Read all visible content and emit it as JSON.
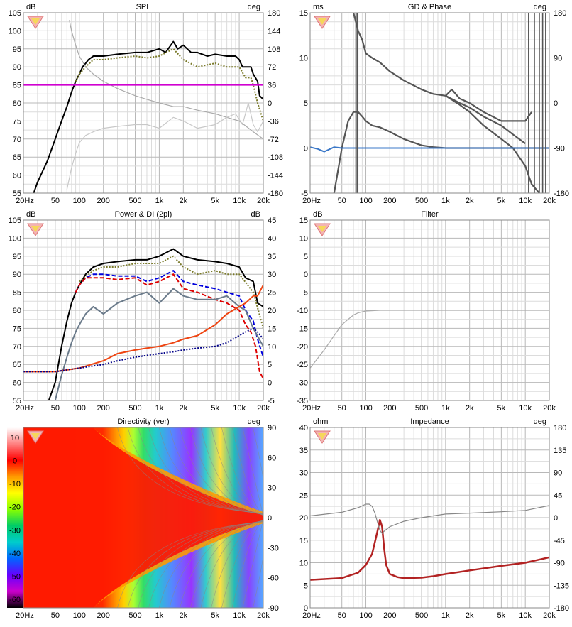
{
  "panels": {
    "spl": {
      "title": "SPL",
      "left_unit": "dB",
      "right_unit": "deg",
      "x_ticks": [
        "20Hz",
        "50",
        "100",
        "200",
        "500",
        "1k",
        "2k",
        "5k",
        "10k",
        "20k"
      ],
      "y_left_ticks": [
        "105",
        "100",
        "95",
        "90",
        "85",
        "80",
        "75",
        "70",
        "65",
        "60",
        "55"
      ],
      "y_right_ticks": [
        "180",
        "144",
        "108",
        "72",
        "36",
        "0",
        "-36",
        "-72",
        "-108",
        "-144",
        "-180"
      ]
    },
    "gd": {
      "title": "GD & Phase",
      "left_unit": "ms",
      "right_unit": "deg",
      "x_ticks": [
        "20Hz",
        "50",
        "100",
        "200",
        "500",
        "1k",
        "2k",
        "5k",
        "10k",
        "20k"
      ],
      "y_left_ticks": [
        "15",
        "10",
        "5",
        "0",
        "-5"
      ],
      "y_right_ticks": [
        "180",
        "90",
        "0",
        "-90",
        "-180"
      ]
    },
    "power": {
      "title": "Power & DI (2pi)",
      "left_unit": "dB",
      "right_unit": "dB",
      "x_ticks": [
        "20Hz",
        "50",
        "100",
        "200",
        "500",
        "1k",
        "2k",
        "5k",
        "10k",
        "20k"
      ],
      "y_left_ticks": [
        "105",
        "100",
        "95",
        "90",
        "85",
        "80",
        "75",
        "70",
        "65",
        "60",
        "55"
      ],
      "y_right_ticks": [
        "45",
        "40",
        "35",
        "30",
        "25",
        "20",
        "15",
        "10",
        "5",
        "0",
        "-5"
      ]
    },
    "filter": {
      "title": "Filter",
      "left_unit": "dB",
      "x_ticks": [
        "20Hz",
        "50",
        "100",
        "200",
        "500",
        "1k",
        "2k",
        "5k",
        "10k",
        "20k"
      ],
      "y_left_ticks": [
        "15",
        "10",
        "5",
        "0",
        "-5",
        "-10",
        "-15",
        "-20",
        "-25",
        "-30",
        "-35"
      ]
    },
    "directivity": {
      "title": "Directivity (ver)",
      "right_unit": "deg",
      "x_ticks": [
        "20Hz",
        "50",
        "100",
        "200",
        "500",
        "1k",
        "2k",
        "5k",
        "10k",
        "20k"
      ],
      "y_right_ticks": [
        "90",
        "60",
        "30",
        "0",
        "-30",
        "-60",
        "-90"
      ],
      "colorbar_ticks": [
        "10",
        "0",
        "-10",
        "-20",
        "-30",
        "-40",
        "-50",
        "-60"
      ]
    },
    "impedance": {
      "title": "Impedance",
      "left_unit": "ohm",
      "right_unit": "deg",
      "x_ticks": [
        "20Hz",
        "50",
        "100",
        "200",
        "500",
        "1k",
        "2k",
        "5k",
        "10k",
        "20k"
      ],
      "y_left_ticks": [
        "40",
        "35",
        "30",
        "25",
        "20",
        "15",
        "10",
        "5",
        "0"
      ],
      "y_right_ticks": [
        "180",
        "135",
        "90",
        "45",
        "0",
        "-45",
        "-90",
        "-135",
        "-180"
      ]
    }
  },
  "chart_data": [
    {
      "type": "line",
      "title": "SPL",
      "x_scale": "log",
      "xlim": [
        20,
        20000
      ],
      "ylim": [
        55,
        105
      ],
      "y2lim": [
        -180,
        180
      ],
      "grid": true,
      "series": [
        {
          "color": "#000000",
          "style": "solid",
          "x": [
            25,
            30,
            40,
            50,
            60,
            70,
            80,
            90,
            100,
            110,
            120,
            130,
            150,
            200,
            300,
            500,
            700,
            1000,
            1200,
            1500,
            1700,
            2000,
            2500,
            3000,
            4000,
            5000,
            7000,
            9000,
            10000,
            11000,
            12000,
            14000,
            15000,
            17000,
            18000,
            20000
          ],
          "y": [
            53,
            58,
            64,
            70,
            75,
            79,
            83,
            86,
            88,
            90,
            91,
            92,
            93,
            93,
            93.5,
            94,
            94,
            95,
            94,
            97,
            95,
            96,
            94,
            94,
            93,
            93.5,
            93,
            93,
            92,
            90,
            90,
            90,
            88,
            86,
            82,
            81
          ]
        },
        {
          "color": "#7a7a2a",
          "style": "dotted",
          "x": [
            90,
            100,
            120,
            150,
            200,
            300,
            500,
            700,
            1000,
            1500,
            2000,
            3000,
            5000,
            7000,
            10000,
            12000,
            14000,
            15000,
            17000,
            20000
          ],
          "y": [
            86,
            88,
            90,
            92,
            92,
            92.5,
            93,
            92.5,
            93,
            95,
            92,
            90,
            91,
            90,
            90,
            87,
            87,
            85,
            80,
            75
          ]
        },
        {
          "color": "#aaaaaa",
          "style": "solid",
          "x": [
            75,
            80,
            90,
            100,
            120,
            150,
            200,
            300,
            500,
            700,
            1000,
            1500,
            2000,
            3000,
            5000,
            7000,
            10000,
            15000,
            20000
          ],
          "y": [
            103,
            100,
            96,
            93,
            90,
            88,
            86,
            84,
            82,
            81,
            80,
            79,
            79,
            78,
            77,
            76,
            75,
            72,
            70
          ]
        },
        {
          "color": "#c8c8c8",
          "style": "solid",
          "x": [
            70,
            80,
            90,
            100,
            120,
            150,
            200,
            300,
            500,
            700,
            1000,
            1500,
            2000,
            3000,
            5000,
            7000,
            9000,
            11000,
            13000,
            15000,
            17000,
            20000
          ],
          "y": [
            56,
            62,
            66,
            69,
            71,
            72,
            73,
            73.5,
            74,
            74,
            73,
            76,
            75,
            73,
            74,
            76,
            77,
            74,
            80,
            74,
            72,
            75
          ]
        },
        {
          "color": "#d000d0",
          "style": "solid",
          "x": [
            20,
            20000
          ],
          "y": [
            85,
            85
          ]
        }
      ]
    },
    {
      "type": "line",
      "title": "GD & Phase",
      "x_scale": "log",
      "xlim": [
        20,
        20000
      ],
      "ylim": [
        -5,
        15
      ],
      "y2lim": [
        -180,
        180
      ],
      "grid": true,
      "series": [
        {
          "color": "#555555",
          "style": "solid",
          "x": [
            40,
            50,
            60,
            70,
            80,
            90,
            100,
            120,
            150,
            200,
            300,
            500,
            700,
            1000,
            1200,
            1500,
            2000,
            3000,
            5000,
            7000,
            10000,
            12000,
            15000,
            20000
          ],
          "y": [
            -5,
            0,
            3,
            4,
            4,
            3.5,
            3,
            2.5,
            2.3,
            1.8,
            1,
            0.3,
            0.1,
            0,
            0,
            0,
            0,
            0,
            0,
            0,
            0,
            0,
            0,
            0
          ]
        },
        {
          "color": "#555555",
          "style": "solid",
          "x": [
            70,
            80,
            90,
            100,
            120,
            150,
            200,
            300,
            500,
            700,
            1000,
            1200,
            1500,
            2000,
            3000,
            5000,
            7000,
            10000,
            12000
          ],
          "y": [
            15,
            13,
            12,
            10.5,
            10,
            9.5,
            8.5,
            7.5,
            6.5,
            6,
            5.8,
            6.5,
            5.5,
            5,
            4,
            3,
            3,
            3,
            4
          ]
        },
        {
          "color": "#555555",
          "style": "solid",
          "x": [
            1000,
            1500,
            2000,
            3000,
            5000,
            7000,
            10000
          ],
          "y": [
            5.8,
            5,
            4.5,
            3.5,
            2.5,
            1.5,
            0.5
          ]
        },
        {
          "color": "#555555",
          "style": "solid",
          "x": [
            1000,
            1500,
            2000,
            3000,
            5000,
            7000,
            10000,
            12000,
            15000
          ],
          "y": [
            5.8,
            4.8,
            4,
            2.5,
            1,
            0,
            -2,
            -4,
            -5
          ]
        },
        {
          "color": "#3b78c8",
          "style": "solid",
          "x": [
            20,
            25,
            30,
            40,
            50,
            100,
            1000,
            10000,
            20000
          ],
          "y": [
            0.1,
            -0.1,
            -0.4,
            0.1,
            0,
            0,
            0,
            0,
            0
          ]
        }
      ]
    },
    {
      "type": "line",
      "title": "Power & DI (2pi)",
      "x_scale": "log",
      "xlim": [
        20,
        20000
      ],
      "ylim": [
        55,
        105
      ],
      "y2lim": [
        -5,
        45
      ],
      "grid": true,
      "series": [
        {
          "color": "#000000",
          "style": "solid",
          "x": [
            40,
            50,
            60,
            70,
            80,
            90,
            100,
            120,
            150,
            200,
            300,
            500,
            700,
            1000,
            1500,
            2000,
            3000,
            5000,
            7000,
            10000,
            12000,
            15000,
            17000,
            20000
          ],
          "y": [
            54,
            60,
            70,
            77,
            82,
            85,
            87,
            90,
            92,
            93,
            93.5,
            94,
            94,
            95,
            97,
            95,
            94,
            93.5,
            93,
            92,
            89,
            88,
            82,
            81
          ]
        },
        {
          "color": "#7a7a2a",
          "style": "dotted",
          "x": [
            100,
            150,
            200,
            300,
            500,
            1000,
            1500,
            2000,
            3000,
            5000,
            7000,
            10000,
            15000,
            20000
          ],
          "y": [
            88,
            91,
            92,
            92,
            93,
            93,
            95,
            92,
            90,
            91,
            90,
            90,
            85,
            75
          ]
        },
        {
          "color": "#0000dd",
          "style": "dashed",
          "x": [
            90,
            100,
            120,
            150,
            200,
            300,
            500,
            700,
            1000,
            1500,
            2000,
            3000,
            5000,
            7000,
            10000,
            12000,
            15000,
            17000,
            20000
          ],
          "y": [
            85,
            87,
            89,
            90,
            90,
            89.5,
            89.5,
            88,
            89,
            91,
            88,
            87,
            86,
            85,
            84,
            80,
            77,
            72,
            67
          ]
        },
        {
          "color": "#dd0000",
          "style": "dashed",
          "x": [
            90,
            100,
            120,
            150,
            200,
            300,
            500,
            700,
            1000,
            1500,
            2000,
            3000,
            5000,
            7000,
            10000,
            12000,
            14000,
            16000,
            18000,
            20000
          ],
          "y": [
            85,
            87,
            89,
            89,
            89,
            88.5,
            89,
            87,
            88,
            90,
            86,
            85,
            83,
            82,
            80,
            76,
            74,
            70,
            63,
            61
          ]
        },
        {
          "color": "#6a7a8a",
          "style": "solid",
          "x": [
            50,
            60,
            70,
            80,
            90,
            100,
            120,
            150,
            200,
            300,
            500,
            700,
            1000,
            1500,
            2000,
            3000,
            5000,
            7000,
            10000,
            12000,
            15000,
            20000
          ],
          "y": [
            55,
            62,
            67,
            71,
            74,
            76,
            79,
            81,
            79,
            82,
            84,
            85,
            82,
            86,
            84,
            83,
            83,
            84,
            81,
            80,
            75,
            70
          ]
        },
        {
          "color": "#ee4411",
          "style": "solid",
          "x": [
            20,
            50,
            100,
            200,
            300,
            500,
            700,
            1000,
            1500,
            2000,
            3000,
            5000,
            7000,
            10000,
            12000,
            15000,
            17000,
            20000
          ],
          "y": [
            3,
            3,
            4,
            6,
            8,
            9,
            9.5,
            10,
            11,
            12,
            13,
            16,
            19,
            21,
            22,
            24,
            24,
            27
          ]
        },
        {
          "color": "#000088",
          "style": "dotted",
          "x": [
            20,
            50,
            100,
            200,
            300,
            500,
            700,
            1000,
            1500,
            2000,
            3000,
            5000,
            7000,
            10000,
            12000,
            15000,
            17000,
            20000
          ],
          "y": [
            3,
            3,
            4,
            5,
            6,
            7,
            7.5,
            8,
            8.5,
            9,
            9.5,
            10,
            11,
            13,
            14,
            15,
            14,
            12
          ]
        }
      ]
    },
    {
      "type": "line",
      "title": "Filter",
      "x_scale": "log",
      "xlim": [
        20,
        20000
      ],
      "ylim": [
        -35,
        15
      ],
      "grid": true,
      "series": [
        {
          "color": "#aaaaaa",
          "style": "solid",
          "x": [
            20,
            30,
            40,
            50,
            60,
            70,
            80,
            100,
            150,
            200,
            500,
            1000,
            20000
          ],
          "y": [
            -26,
            -21,
            -17,
            -14,
            -12.5,
            -11.3,
            -10.7,
            -10.2,
            -10,
            -10,
            -10,
            -10,
            -10
          ]
        }
      ]
    },
    {
      "type": "heatmap",
      "title": "Directivity (ver)",
      "x_scale": "log",
      "xlim": [
        20,
        20000
      ],
      "ylim": [
        -90,
        90
      ],
      "color_scale": [
        10,
        -60
      ],
      "colorbar": [
        "#ffffff",
        "#ff8080",
        "#ff0000",
        "#ff9900",
        "#ffff00",
        "#88ff00",
        "#00cc66",
        "#00cccc",
        "#0066ff",
        "#6600ff",
        "#cc00cc",
        "#000000"
      ]
    },
    {
      "type": "line",
      "title": "Impedance",
      "x_scale": "log",
      "xlim": [
        20,
        20000
      ],
      "ylim": [
        0,
        40
      ],
      "y2lim": [
        -180,
        180
      ],
      "grid": true,
      "series": [
        {
          "color": "#b22222",
          "style": "solid",
          "x": [
            20,
            50,
            80,
            100,
            120,
            140,
            150,
            160,
            170,
            180,
            200,
            250,
            300,
            500,
            700,
            1000,
            2000,
            5000,
            10000,
            20000
          ],
          "y": [
            6.2,
            6.6,
            7.8,
            9.5,
            12,
            17,
            19.5,
            18,
            13,
            9.5,
            7.5,
            6.8,
            6.6,
            6.7,
            7,
            7.5,
            8.3,
            9.3,
            10,
            11.2
          ]
        },
        {
          "color": "#888888",
          "style": "solid",
          "x": [
            20,
            50,
            80,
            100,
            110,
            120,
            130,
            140,
            150,
            160,
            170,
            200,
            300,
            500,
            700,
            1000,
            2000,
            5000,
            10000,
            20000
          ],
          "y": [
            20.4,
            21.2,
            22.2,
            23,
            23,
            22.5,
            21,
            19,
            17.2,
            16.5,
            17,
            18,
            19.2,
            20,
            20.4,
            20.8,
            21,
            21.3,
            21.6,
            22.7
          ]
        }
      ]
    }
  ]
}
